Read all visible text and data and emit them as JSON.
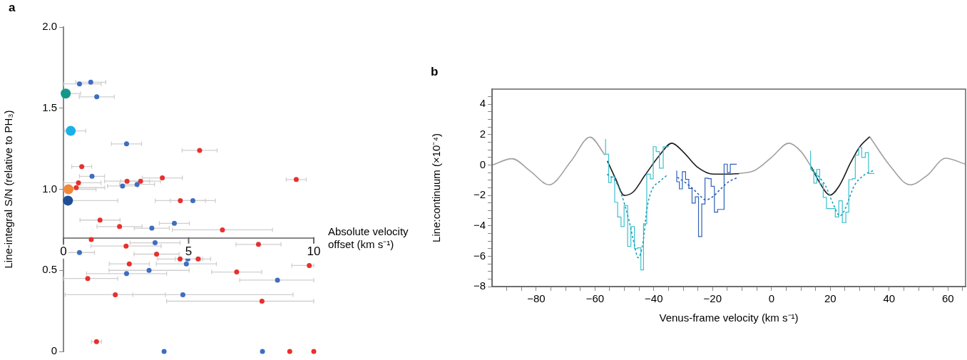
{
  "chart_data": [
    {
      "type": "scatter",
      "title": "a",
      "xlabel": "Absolute velocity offset (km s⁻¹)",
      "ylabel": "Line-integral S/N (relative to PH₃)",
      "marker": "circle",
      "xlim": [
        0,
        10
      ],
      "xticks": [
        0,
        5,
        10
      ],
      "ylim": [
        0,
        2
      ],
      "yticks": [
        0,
        {
          "value": 0.5,
          "label": "0.5"
        },
        {
          "value": 1,
          "label": "1.0"
        },
        {
          "value": 1.5,
          "label": "1.5"
        },
        {
          "value": 2,
          "label": "2.0"
        }
      ],
      "series": [
        {
          "color": "#e8302e",
          "x": [
            5.44,
            0.73,
            9.3,
            3.95,
            0.6,
            2.54,
            3.08,
            0.51,
            4.67,
            1.46,
            2.24,
            6.35,
            1.11,
            7.79,
            2.5,
            3.72,
            4.66,
            5.38,
            2.63,
            9.82,
            6.92,
            0.97,
            2.07,
            7.93,
            1.32,
            9.04,
            10
          ],
          "values": [
            1.24,
            1.14,
            1.06,
            1.07,
            1.04,
            1.05,
            1.05,
            1.01,
            0.93,
            0.81,
            0.77,
            0.75,
            0.69,
            0.66,
            0.65,
            0.6,
            0.57,
            0.57,
            0.54,
            0.53,
            0.49,
            0.45,
            0.35,
            0.31,
            0.06,
            0,
            0
          ],
          "xerrors": [
            0.7,
            0.4,
            0.4,
            0.8,
            [
              0.02,
              1.5
            ],
            0.9,
            0.8,
            [
              0.02,
              1.65
            ],
            1.0,
            0.8,
            0.9,
            2.0,
            null,
            0.9,
            1.4,
            0.9,
            0.9,
            0.5,
            0.8,
            [
              9.12,
              10
            ],
            1.0,
            [
              0.02,
              2.17
            ],
            2.0,
            [
              4.12,
              10
            ],
            0.2,
            null,
            null
          ]
        },
        {
          "color": "#3f6dc2",
          "x": [
            0.64,
            1.09,
            1.33,
            2.52,
            1.14,
            2.36,
            2.94,
            5.17,
            4.43,
            3.53,
            3.66,
            0.64,
            4.97,
            4.91,
            3.42,
            2.52,
            8.55,
            4.77,
            4.02,
            7.95
          ],
          "values": [
            1.65,
            1.66,
            1.57,
            1.28,
            1.08,
            1.02,
            1.03,
            0.93,
            0.79,
            0.76,
            0.67,
            0.61,
            0.57,
            0.54,
            0.5,
            0.48,
            0.44,
            0.35,
            0,
            0
          ],
          "xerrors": [
            [
              0.02,
              1.51
            ],
            0.6,
            0.7,
            0.6,
            0.5,
            0.6,
            0.7,
            0.9,
            0.6,
            0.7,
            1.0,
            0.6,
            0.5,
            1.2,
            1.6,
            1.6,
            [
              7.04,
              10
            ],
            [
              2.77,
              9.17
            ],
            null,
            null
          ]
        },
        {
          "color": "#14978a",
          "x": [
            0.09
          ],
          "values": [
            1.59
          ],
          "xerrors": [
            [
              0.02,
              0.68
            ]
          ]
        },
        {
          "color": "#1bb0e6",
          "x": [
            0.29
          ],
          "values": [
            1.36
          ],
          "xerrors": [
            [
              0.04,
              0.89
            ]
          ]
        },
        {
          "color": "#f0883a",
          "x": [
            0.2
          ],
          "values": [
            1.0
          ],
          "xerrors": [
            [
              0.02,
              1.3
            ]
          ]
        },
        {
          "color": "#1f4e96",
          "x": [
            0.18
          ],
          "values": [
            0.93
          ],
          "xerrors": [
            [
              0.04,
              2.17
            ]
          ]
        }
      ]
    },
    {
      "type": "line",
      "title": "b",
      "xlabel": "Venus-frame velocity (km s⁻¹)",
      "ylabel": "Line:continuum (×10⁻⁴)",
      "xlim": [
        -95,
        66
      ],
      "xticks": [
        {
          "value": -90,
          "label": null
        },
        {
          "value": -85,
          "label": null
        },
        {
          "value": -80,
          "label": "−80"
        },
        {
          "value": -75,
          "label": null
        },
        {
          "value": -70,
          "label": null
        },
        {
          "value": -65,
          "label": null
        },
        {
          "value": -60,
          "label": "−60"
        },
        {
          "value": -55,
          "label": null
        },
        {
          "value": -50,
          "label": null
        },
        {
          "value": -45,
          "label": null
        },
        {
          "value": -40,
          "label": "−40"
        },
        {
          "value": -35,
          "label": null
        },
        {
          "value": -30,
          "label": null
        },
        {
          "value": -25,
          "label": null
        },
        {
          "value": -20,
          "label": "−20"
        },
        {
          "value": -15,
          "label": null
        },
        {
          "value": -10,
          "label": null
        },
        {
          "value": -5,
          "label": null
        },
        0,
        {
          "value": 5,
          "label": null
        },
        {
          "value": 10,
          "label": null
        },
        {
          "value": 15,
          "label": null
        },
        20,
        {
          "value": 25,
          "label": null
        },
        {
          "value": 30,
          "label": null
        },
        {
          "value": 35,
          "label": null
        },
        40,
        {
          "value": 45,
          "label": null
        },
        {
          "value": 50,
          "label": null
        },
        {
          "value": 55,
          "label": null
        },
        60,
        {
          "value": 65,
          "label": null
        }
      ],
      "ylim": [
        -8,
        5
      ],
      "yticks": [
        {
          "value": -8,
          "label": "−8"
        },
        {
          "value": -7.5,
          "label": null
        },
        {
          "value": -7,
          "label": null
        },
        {
          "value": -6.5,
          "label": null
        },
        {
          "value": -6,
          "label": "−6"
        },
        {
          "value": -5.5,
          "label": null
        },
        {
          "value": -5,
          "label": null
        },
        {
          "value": -4.5,
          "label": null
        },
        {
          "value": -4,
          "label": "−4"
        },
        {
          "value": -3.5,
          "label": null
        },
        {
          "value": -3,
          "label": null
        },
        {
          "value": -2.5,
          "label": null
        },
        {
          "value": -2,
          "label": "−2"
        },
        {
          "value": -1.5,
          "label": null
        },
        {
          "value": -1,
          "label": null
        },
        {
          "value": -0.5,
          "label": null
        },
        0,
        {
          "value": 0.5,
          "label": null
        },
        {
          "value": 1,
          "label": null
        },
        {
          "value": 1.5,
          "label": null
        },
        2,
        {
          "value": 2.5,
          "label": null
        },
        {
          "value": 3,
          "label": null
        },
        {
          "value": 3.5,
          "label": null
        },
        4,
        {
          "value": 4.5,
          "label": null
        }
      ],
      "series": [
        {
          "type": "line",
          "color": "#a0a0a0",
          "x": [
            -95,
            -88.2,
            -82,
            -75.6,
            -68,
            -61.7,
            -56.6,
            -30,
            -11,
            -5.8,
            0,
            5.9,
            10,
            13.6,
            24,
            33.4,
            40,
            47.1,
            53,
            59.2,
            65.9
          ],
          "values": [
            0,
            0.42,
            -0.4,
            -1.3,
            0.3,
            1.84,
            0.66,
            null,
            -0.56,
            -0.36,
            0.5,
            1.44,
            0.9,
            -0.13,
            null,
            1.87,
            0.03,
            -1.3,
            -0.67,
            0.45,
            0.06
          ]
        },
        {
          "type": "line",
          "color": "#1c1c1c",
          "x": [
            -55.8,
            -53,
            -50.1,
            -47,
            -43,
            -38,
            -33.9,
            -30.1,
            -25.2,
            -19.6,
            -15,
            -11,
            0,
            13.6,
            16.5,
            19.9,
            23,
            27,
            30,
            33.4
          ],
          "values": [
            0.27,
            -0.9,
            -2.0,
            -1.77,
            -0.67,
            0.66,
            1.44,
            0.89,
            -0.13,
            -0.6,
            -0.6,
            -0.56,
            null,
            -0.13,
            -1.2,
            -1.98,
            -1.38,
            0.19,
            1.2,
            1.87
          ]
        },
        {
          "type": "step",
          "color": "#3cc0cf",
          "x": [
            -56.4,
            -55.35,
            -54.5,
            -53.3,
            -52.3,
            -51.15,
            -50.1,
            -48.9,
            -47.8,
            -46.6,
            -45.5,
            -44.4,
            -43.5,
            -42.4,
            -41.2,
            -40.2,
            -39.2,
            -38.1,
            -36.8,
            -35.7,
            -34.9,
            0,
            13.3,
            14.4,
            15.4,
            16.4,
            17.6,
            18.7,
            21.7,
            22.9,
            24.1,
            25.3,
            26.3,
            27.5,
            28.5,
            29.7,
            30.7,
            31.9,
            33.0,
            34.2,
            35.0
          ],
          "values": [
            1.72,
            0.71,
            -1.15,
            -0.78,
            -2.45,
            -3.42,
            -4.05,
            -2.67,
            -5.35,
            -4.05,
            -5.5,
            -5.45,
            -6.9,
            -3.86,
            -0.6,
            -0.91,
            1.21,
            0.89,
            -0.2,
            1.2,
            1.2,
            null,
            0.94,
            -0.28,
            -1.19,
            -0.28,
            -1.25,
            -2.13,
            -2.87,
            -3.42,
            -2.35,
            -3.8,
            -3.1,
            -0.96,
            -0.9,
            0.66,
            1.16,
            0.5,
            0.82,
            -0.56,
            -0.56
          ]
        },
        {
          "type": "step",
          "color": "#3060b8",
          "x": [
            -32.2,
            -31.3,
            -30.3,
            -29.2,
            -28.1,
            -27.0,
            -25.9,
            -24.8,
            -23.7,
            -22.6,
            -21.5,
            -20.5,
            -19.4,
            -18.3,
            -17.2,
            -16.1,
            -15.0,
            -14.0,
            -12.9,
            -11.8
          ],
          "values": [
            -0.36,
            -1.1,
            -1.57,
            -0.44,
            -0.94,
            -1.54,
            -2.5,
            -2.09,
            -4.71,
            -2.56,
            -0.86,
            -0.9,
            -1.4,
            -3.1,
            -2.92,
            -2.92,
            0.06,
            -0.5,
            0.05,
            0.05
          ]
        },
        {
          "type": "line",
          "line_style": "dotted",
          "color": "#1f9fb8",
          "x": [
            -55.9,
            -53,
            -50.9,
            -48.5,
            -46.9,
            -45.3,
            -43.6,
            -42.4,
            -40.8,
            -38,
            -35.2,
            0,
            13.6,
            16,
            18.4,
            20.8,
            23.3,
            24.9,
            26.5,
            28.1,
            31.4,
            34.6
          ],
          "values": [
            -0.6,
            -1.07,
            -2.0,
            -3.6,
            -5.0,
            -6.1,
            -5.0,
            -2.95,
            -1.7,
            -1.07,
            -0.63,
            null,
            -0.31,
            -0.75,
            -1.38,
            -2.48,
            -3.34,
            -2.95,
            -2.16,
            -1.38,
            -0.67,
            -0.36
          ]
        },
        {
          "type": "line",
          "line_style": "dotted",
          "color": "#3060b8",
          "x": [
            -32,
            -29.3,
            -26.8,
            -24.4,
            -22.4,
            -20,
            -17.1,
            -14.3,
            -11.6
          ],
          "values": [
            -0.8,
            -1.15,
            -1.54,
            -2.0,
            -2.29,
            -2.09,
            -1.54,
            -1.07,
            -0.83
          ]
        }
      ]
    }
  ]
}
